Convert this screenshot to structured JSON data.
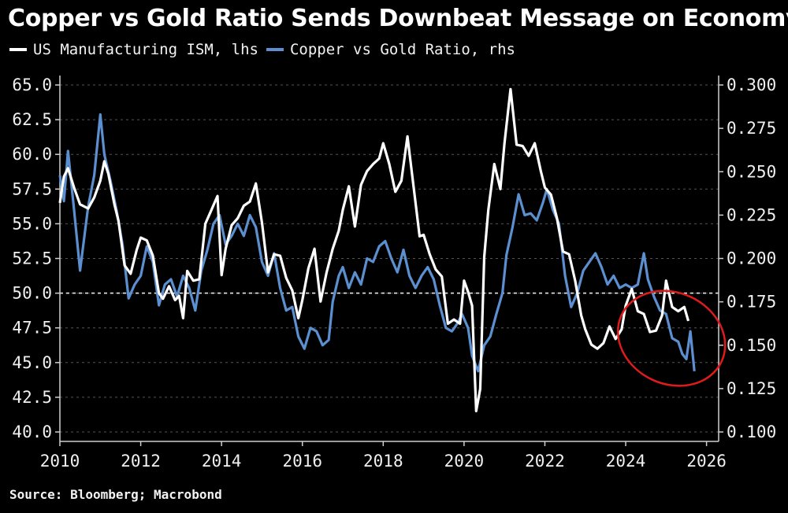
{
  "title": "Copper vs Gold Ratio Sends Downbeat Message on Economy",
  "legend": {
    "ism_label": "US Manufacturing ISM, lhs",
    "ratio_label": "Copper vs Gold Ratio, rhs"
  },
  "source": "Source: Bloomberg; Macrobond",
  "colors": {
    "ism": "#ffffff",
    "ratio": "#5b8fd0",
    "highlight": "#e01b1b",
    "grid": "#555555"
  },
  "chart_data": {
    "type": "line",
    "title": "Copper vs Gold Ratio Sends Downbeat Message on Economy",
    "x_label": "",
    "y_left_label": "",
    "y_right_label": "",
    "x_ticks": [
      "2010",
      "2012",
      "2014",
      "2016",
      "2018",
      "2020",
      "2022",
      "2024",
      "2026"
    ],
    "y_left_ticks": [
      "40.0",
      "42.5",
      "45.0",
      "47.5",
      "50.0",
      "52.5",
      "55.0",
      "57.5",
      "60.0",
      "62.5",
      "65.0"
    ],
    "y_right_ticks": [
      "0.100",
      "0.125",
      "0.150",
      "0.175",
      "0.200",
      "0.225",
      "0.250",
      "0.275",
      "0.300"
    ],
    "x_range": [
      2010,
      2026.3
    ],
    "y_left_range": [
      40,
      65
    ],
    "y_right_range": [
      0.1,
      0.3
    ],
    "reference_line": {
      "axis": "left",
      "value": 50.0,
      "style": "dashed"
    },
    "highlight": {
      "shape": "ellipse",
      "around_years": [
        2024.0,
        2025.8
      ],
      "description": "red circle around recent decline"
    },
    "series": [
      {
        "name": "US Manufacturing ISM, lhs",
        "axis": "left",
        "points": [
          [
            2010.0,
            56.5
          ],
          [
            2010.1,
            58.4
          ],
          [
            2010.2,
            59.0
          ],
          [
            2010.35,
            57.6
          ],
          [
            2010.5,
            56.4
          ],
          [
            2010.7,
            56.1
          ],
          [
            2010.85,
            56.9
          ],
          [
            2011.0,
            58.1
          ],
          [
            2011.1,
            59.5
          ],
          [
            2011.2,
            58.6
          ],
          [
            2011.35,
            56.4
          ],
          [
            2011.45,
            55.2
          ],
          [
            2011.6,
            52.0
          ],
          [
            2011.75,
            51.4
          ],
          [
            2011.9,
            53.1
          ],
          [
            2012.0,
            54.0
          ],
          [
            2012.15,
            53.8
          ],
          [
            2012.3,
            52.7
          ],
          [
            2012.45,
            50.0
          ],
          [
            2012.55,
            49.6
          ],
          [
            2012.7,
            50.5
          ],
          [
            2012.85,
            49.5
          ],
          [
            2012.95,
            49.8
          ],
          [
            2013.05,
            48.2
          ],
          [
            2013.15,
            51.6
          ],
          [
            2013.3,
            50.9
          ],
          [
            2013.45,
            51.0
          ],
          [
            2013.6,
            55.0
          ],
          [
            2013.75,
            56.0
          ],
          [
            2013.9,
            57.0
          ],
          [
            2014.0,
            51.3
          ],
          [
            2014.1,
            53.2
          ],
          [
            2014.25,
            54.9
          ],
          [
            2014.4,
            55.4
          ],
          [
            2014.55,
            56.3
          ],
          [
            2014.7,
            56.6
          ],
          [
            2014.85,
            57.9
          ],
          [
            2015.0,
            55.1
          ],
          [
            2015.15,
            51.5
          ],
          [
            2015.3,
            52.8
          ],
          [
            2015.45,
            52.7
          ],
          [
            2015.6,
            51.1
          ],
          [
            2015.75,
            50.2
          ],
          [
            2015.9,
            48.2
          ],
          [
            2016.0,
            49.5
          ],
          [
            2016.15,
            51.8
          ],
          [
            2016.3,
            53.2
          ],
          [
            2016.45,
            49.4
          ],
          [
            2016.6,
            51.5
          ],
          [
            2016.75,
            53.2
          ],
          [
            2016.9,
            54.5
          ],
          [
            2017.0,
            56.0
          ],
          [
            2017.15,
            57.7
          ],
          [
            2017.3,
            54.8
          ],
          [
            2017.45,
            57.8
          ],
          [
            2017.6,
            58.8
          ],
          [
            2017.75,
            59.3
          ],
          [
            2017.9,
            59.7
          ],
          [
            2018.0,
            60.8
          ],
          [
            2018.15,
            59.3
          ],
          [
            2018.3,
            57.3
          ],
          [
            2018.45,
            58.1
          ],
          [
            2018.6,
            61.3
          ],
          [
            2018.75,
            57.7
          ],
          [
            2018.9,
            54.1
          ],
          [
            2019.0,
            54.2
          ],
          [
            2019.15,
            52.8
          ],
          [
            2019.3,
            51.7
          ],
          [
            2019.45,
            51.2
          ],
          [
            2019.6,
            47.8
          ],
          [
            2019.75,
            48.1
          ],
          [
            2019.9,
            47.8
          ],
          [
            2020.0,
            50.9
          ],
          [
            2020.1,
            50.1
          ],
          [
            2020.2,
            49.1
          ],
          [
            2020.3,
            41.5
          ],
          [
            2020.4,
            43.1
          ],
          [
            2020.5,
            52.6
          ],
          [
            2020.6,
            56.0
          ],
          [
            2020.75,
            59.3
          ],
          [
            2020.9,
            57.5
          ],
          [
            2021.0,
            60.8
          ],
          [
            2021.15,
            64.7
          ],
          [
            2021.3,
            60.7
          ],
          [
            2021.45,
            60.6
          ],
          [
            2021.6,
            59.9
          ],
          [
            2021.75,
            60.8
          ],
          [
            2021.9,
            58.8
          ],
          [
            2022.0,
            57.6
          ],
          [
            2022.15,
            57.1
          ],
          [
            2022.3,
            55.4
          ],
          [
            2022.45,
            53.0
          ],
          [
            2022.6,
            52.8
          ],
          [
            2022.75,
            50.9
          ],
          [
            2022.9,
            48.4
          ],
          [
            2023.0,
            47.4
          ],
          [
            2023.15,
            46.3
          ],
          [
            2023.3,
            46.0
          ],
          [
            2023.45,
            46.4
          ],
          [
            2023.6,
            47.6
          ],
          [
            2023.75,
            46.7
          ],
          [
            2023.9,
            47.4
          ],
          [
            2024.0,
            49.1
          ],
          [
            2024.15,
            50.3
          ],
          [
            2024.3,
            48.7
          ],
          [
            2024.45,
            48.5
          ],
          [
            2024.6,
            47.2
          ],
          [
            2024.75,
            47.3
          ],
          [
            2024.9,
            48.4
          ],
          [
            2025.0,
            50.9
          ],
          [
            2025.15,
            49.0
          ],
          [
            2025.3,
            48.7
          ],
          [
            2025.45,
            49.0
          ],
          [
            2025.55,
            48.0
          ]
        ]
      },
      {
        "name": "Copper vs Gold Ratio, rhs",
        "axis": "right",
        "points": [
          [
            2010.0,
            0.248
          ],
          [
            2010.1,
            0.233
          ],
          [
            2010.2,
            0.262
          ],
          [
            2010.35,
            0.228
          ],
          [
            2010.5,
            0.193
          ],
          [
            2010.7,
            0.23
          ],
          [
            2010.85,
            0.248
          ],
          [
            2011.0,
            0.283
          ],
          [
            2011.1,
            0.26
          ],
          [
            2011.25,
            0.245
          ],
          [
            2011.4,
            0.228
          ],
          [
            2011.55,
            0.208
          ],
          [
            2011.7,
            0.177
          ],
          [
            2011.85,
            0.185
          ],
          [
            2012.0,
            0.19
          ],
          [
            2012.15,
            0.207
          ],
          [
            2012.3,
            0.198
          ],
          [
            2012.45,
            0.173
          ],
          [
            2012.6,
            0.185
          ],
          [
            2012.75,
            0.188
          ],
          [
            2012.9,
            0.178
          ],
          [
            2013.05,
            0.19
          ],
          [
            2013.2,
            0.183
          ],
          [
            2013.35,
            0.17
          ],
          [
            2013.5,
            0.193
          ],
          [
            2013.65,
            0.205
          ],
          [
            2013.8,
            0.22
          ],
          [
            2013.95,
            0.225
          ],
          [
            2014.1,
            0.208
          ],
          [
            2014.25,
            0.213
          ],
          [
            2014.4,
            0.22
          ],
          [
            2014.55,
            0.213
          ],
          [
            2014.7,
            0.225
          ],
          [
            2014.85,
            0.218
          ],
          [
            2015.0,
            0.198
          ],
          [
            2015.15,
            0.19
          ],
          [
            2015.3,
            0.203
          ],
          [
            2015.45,
            0.183
          ],
          [
            2015.6,
            0.17
          ],
          [
            2015.75,
            0.172
          ],
          [
            2015.9,
            0.155
          ],
          [
            2016.05,
            0.148
          ],
          [
            2016.2,
            0.16
          ],
          [
            2016.35,
            0.158
          ],
          [
            2016.5,
            0.15
          ],
          [
            2016.65,
            0.153
          ],
          [
            2016.75,
            0.175
          ],
          [
            2016.9,
            0.19
          ],
          [
            2017.0,
            0.195
          ],
          [
            2017.15,
            0.183
          ],
          [
            2017.3,
            0.192
          ],
          [
            2017.45,
            0.185
          ],
          [
            2017.6,
            0.2
          ],
          [
            2017.75,
            0.198
          ],
          [
            2017.9,
            0.207
          ],
          [
            2018.05,
            0.21
          ],
          [
            2018.2,
            0.2
          ],
          [
            2018.35,
            0.192
          ],
          [
            2018.5,
            0.205
          ],
          [
            2018.65,
            0.19
          ],
          [
            2018.8,
            0.183
          ],
          [
            2018.95,
            0.19
          ],
          [
            2019.1,
            0.195
          ],
          [
            2019.25,
            0.188
          ],
          [
            2019.4,
            0.173
          ],
          [
            2019.55,
            0.16
          ],
          [
            2019.7,
            0.158
          ],
          [
            2019.85,
            0.163
          ],
          [
            2019.95,
            0.168
          ],
          [
            2020.1,
            0.16
          ],
          [
            2020.2,
            0.144
          ],
          [
            2020.35,
            0.135
          ],
          [
            2020.5,
            0.15
          ],
          [
            2020.65,
            0.155
          ],
          [
            2020.8,
            0.168
          ],
          [
            2020.95,
            0.18
          ],
          [
            2021.05,
            0.202
          ],
          [
            2021.2,
            0.218
          ],
          [
            2021.35,
            0.237
          ],
          [
            2021.5,
            0.225
          ],
          [
            2021.65,
            0.226
          ],
          [
            2021.8,
            0.222
          ],
          [
            2021.95,
            0.232
          ],
          [
            2022.05,
            0.24
          ],
          [
            2022.2,
            0.228
          ],
          [
            2022.35,
            0.22
          ],
          [
            2022.5,
            0.19
          ],
          [
            2022.65,
            0.172
          ],
          [
            2022.8,
            0.18
          ],
          [
            2022.95,
            0.193
          ],
          [
            2023.1,
            0.198
          ],
          [
            2023.25,
            0.203
          ],
          [
            2023.4,
            0.195
          ],
          [
            2023.55,
            0.185
          ],
          [
            2023.7,
            0.19
          ],
          [
            2023.85,
            0.183
          ],
          [
            2024.0,
            0.185
          ],
          [
            2024.15,
            0.183
          ],
          [
            2024.3,
            0.185
          ],
          [
            2024.45,
            0.203
          ],
          [
            2024.55,
            0.188
          ],
          [
            2024.7,
            0.178
          ],
          [
            2024.85,
            0.17
          ],
          [
            2025.0,
            0.168
          ],
          [
            2025.15,
            0.154
          ],
          [
            2025.3,
            0.152
          ],
          [
            2025.4,
            0.145
          ],
          [
            2025.5,
            0.142
          ],
          [
            2025.6,
            0.158
          ],
          [
            2025.7,
            0.135
          ]
        ]
      }
    ]
  }
}
